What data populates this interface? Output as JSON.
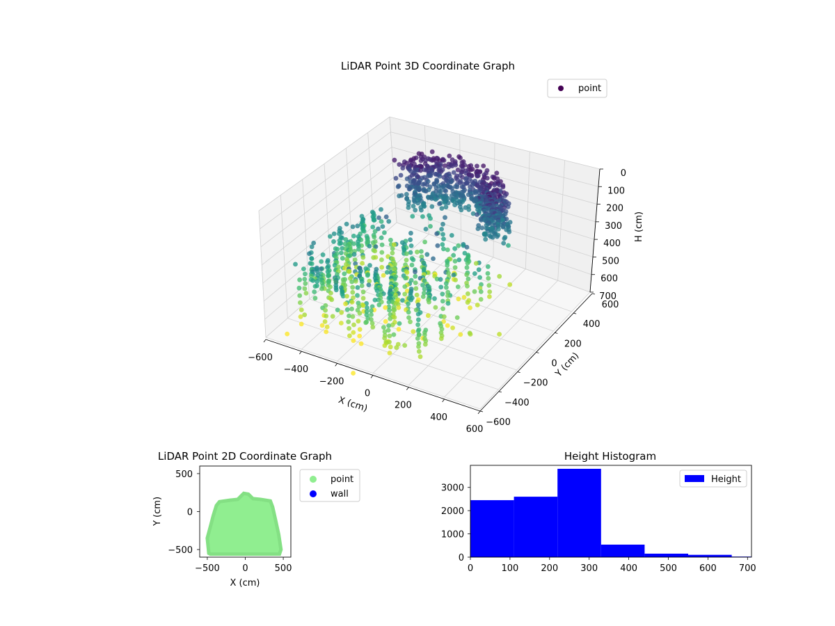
{
  "figure": {
    "background": "#ffffff"
  },
  "chart_data": [
    {
      "type": "scatter",
      "title": "LiDAR Point 3D Coordinate Graph",
      "xlabel": "X (cm)",
      "ylabel": "Y (cm)",
      "zlabel": "H (cm)",
      "xlim": [
        -600,
        600
      ],
      "ylim": [
        -600,
        600
      ],
      "zlim": [
        700,
        0
      ],
      "x_ticks": [
        "−600",
        "−400",
        "−200",
        "0",
        "200",
        "400",
        "600"
      ],
      "y_ticks": [
        "−600",
        "−400",
        "−200",
        "0",
        "200",
        "400",
        "600"
      ],
      "z_ticks": [
        "0",
        "100",
        "200",
        "300",
        "400",
        "500",
        "600",
        "700"
      ],
      "grid": true,
      "colormap": "viridis",
      "legend": {
        "position": "top-right",
        "entries": [
          {
            "label": "point",
            "color": "#440154"
          }
        ]
      },
      "points_approx": [
        {
          "x": -150,
          "y": 250,
          "h": 80
        },
        {
          "x": 0,
          "y": 250,
          "h": 60
        },
        {
          "x": 150,
          "y": 200,
          "h": 120
        },
        {
          "x": -300,
          "y": 100,
          "h": 200
        },
        {
          "x": -450,
          "y": -100,
          "h": 350
        },
        {
          "x": -500,
          "y": -300,
          "h": 500
        },
        {
          "x": -350,
          "y": -450,
          "h": 620
        },
        {
          "x": 0,
          "y": -500,
          "h": 560
        },
        {
          "x": 200,
          "y": -400,
          "h": 450
        },
        {
          "x": 250,
          "y": -250,
          "h": 380
        }
      ]
    },
    {
      "type": "scatter",
      "title": "LiDAR Point 2D Coordinate Graph",
      "xlabel": "X (cm)",
      "ylabel": "Y (cm)",
      "xlim": [
        -600,
        600
      ],
      "ylim": [
        -600,
        600
      ],
      "x_ticks": [
        "−500",
        "0",
        "500"
      ],
      "y_ticks": [
        "500",
        "0",
        "−500"
      ],
      "legend": {
        "position": "outside-right",
        "entries": [
          {
            "label": "point",
            "color": "#90ee90"
          },
          {
            "label": "wall",
            "color": "#0000ff"
          }
        ]
      },
      "series": [
        {
          "name": "point",
          "color": "#90ee90",
          "outline_approx": [
            [
              -480,
              -550
            ],
            [
              -500,
              -350
            ],
            [
              -460,
              -200
            ],
            [
              -420,
              -50
            ],
            [
              -380,
              80
            ],
            [
              -340,
              130
            ],
            [
              -200,
              150
            ],
            [
              -100,
              160
            ],
            [
              -20,
              240
            ],
            [
              40,
              230
            ],
            [
              100,
              170
            ],
            [
              200,
              160
            ],
            [
              330,
              140
            ],
            [
              360,
              60
            ],
            [
              400,
              -120
            ],
            [
              440,
              -300
            ],
            [
              470,
              -500
            ],
            [
              450,
              -560
            ],
            [
              -460,
              -560
            ]
          ]
        }
      ]
    },
    {
      "type": "bar",
      "title": "Height Histogram",
      "xlabel": "",
      "ylabel": "",
      "xlim": [
        0,
        710
      ],
      "ylim": [
        0,
        3950
      ],
      "x_ticks": [
        "0",
        "100",
        "200",
        "300",
        "400",
        "500",
        "600",
        "700"
      ],
      "y_ticks": [
        "0",
        "1000",
        "2000",
        "3000"
      ],
      "legend": {
        "position": "top-right",
        "entries": [
          {
            "label": "Height",
            "color": "#0000ff"
          }
        ]
      },
      "bins": [
        {
          "start": 0,
          "end": 110,
          "count": 2450
        },
        {
          "start": 110,
          "end": 220,
          "count": 2600
        },
        {
          "start": 220,
          "end": 330,
          "count": 3800
        },
        {
          "start": 330,
          "end": 440,
          "count": 540
        },
        {
          "start": 440,
          "end": 550,
          "count": 150
        },
        {
          "start": 550,
          "end": 660,
          "count": 100
        },
        {
          "start": 660,
          "end": 710,
          "count": 25
        }
      ],
      "color": "#0000ff"
    }
  ]
}
